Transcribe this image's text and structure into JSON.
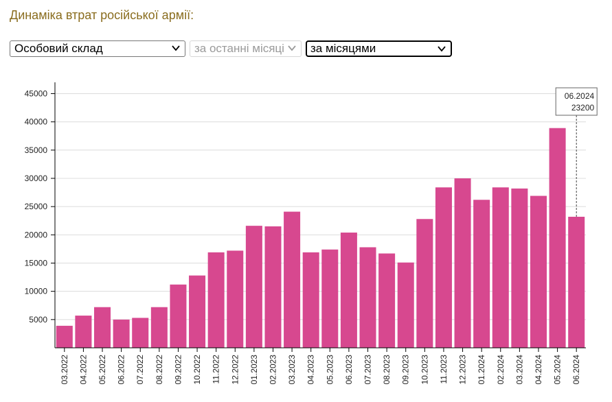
{
  "page": {
    "title": "Динаміка втрат російської армії:"
  },
  "filters": {
    "category": {
      "selected": "Особовий склад",
      "icon": "chevron-down-icon"
    },
    "range": {
      "selected": "за останні місяці",
      "disabled": true,
      "icon": "chevron-down-icon"
    },
    "grouping": {
      "selected": "за місяцями",
      "icon": "chevron-down-icon"
    }
  },
  "chart_data": {
    "type": "bar",
    "categories": [
      "03.2022",
      "04.2022",
      "05.2022",
      "06.2022",
      "07.2022",
      "08.2022",
      "09.2022",
      "10.2022",
      "11.2022",
      "12.2022",
      "01.2023",
      "02.2023",
      "03.2023",
      "04.2023",
      "05.2023",
      "06.2023",
      "07.2023",
      "08.2023",
      "09.2023",
      "10.2023",
      "11.2023",
      "12.2023",
      "01.2024",
      "02.2024",
      "03.2024",
      "04.2024",
      "05.2024",
      "06.2024"
    ],
    "values": [
      3900,
      5700,
      7200,
      5000,
      5300,
      7200,
      11200,
      12800,
      16900,
      17200,
      21600,
      21500,
      24100,
      16900,
      17400,
      20400,
      17800,
      16700,
      15100,
      22800,
      28400,
      30000,
      26200,
      28400,
      28200,
      26900,
      38900,
      23200
    ],
    "yticks": [
      5000,
      10000,
      15000,
      20000,
      25000,
      30000,
      35000,
      40000,
      45000
    ],
    "ylim": [
      0,
      47000
    ],
    "grid": true,
    "bar_color": "#d7488f",
    "tooltip": {
      "category": "06.2024",
      "value": "23200"
    }
  }
}
